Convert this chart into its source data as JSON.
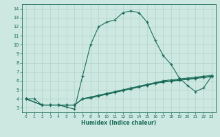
{
  "xlabel": "Humidex (Indice chaleur)",
  "background_color": "#cce8e0",
  "grid_color": "#aaccc4",
  "line_color": "#1a6b5a",
  "xlim": [
    -0.5,
    23.5
  ],
  "ylim": [
    2.5,
    14.5
  ],
  "xticks": [
    0,
    1,
    2,
    3,
    4,
    5,
    6,
    7,
    8,
    9,
    10,
    11,
    12,
    13,
    14,
    15,
    16,
    17,
    18,
    19,
    20,
    21,
    22,
    23
  ],
  "yticks": [
    3,
    4,
    5,
    6,
    7,
    8,
    9,
    10,
    11,
    12,
    13,
    14
  ],
  "line1_x": [
    0,
    1,
    2,
    3,
    4,
    5,
    6,
    7,
    8,
    9,
    10,
    11,
    12,
    13,
    14,
    15,
    16,
    17,
    18,
    19,
    20,
    21,
    22,
    23
  ],
  "line1_y": [
    4.0,
    4.0,
    3.3,
    3.3,
    3.3,
    3.1,
    2.85,
    6.5,
    10.0,
    12.0,
    12.5,
    12.75,
    13.55,
    13.75,
    13.55,
    12.5,
    10.5,
    8.8,
    7.8,
    6.3,
    5.5,
    4.8,
    5.2,
    6.5
  ],
  "line2_x": [
    0,
    2,
    3,
    4,
    5,
    6,
    7,
    8,
    9,
    10,
    11,
    12,
    13,
    14,
    15,
    16,
    17,
    18,
    19,
    20,
    21,
    22,
    23
  ],
  "line2_y": [
    4.0,
    3.3,
    3.3,
    3.3,
    3.3,
    3.3,
    4.0,
    4.2,
    4.4,
    4.6,
    4.8,
    5.0,
    5.2,
    5.4,
    5.6,
    5.8,
    6.0,
    6.1,
    6.2,
    6.3,
    6.4,
    6.5,
    6.6
  ],
  "line3_x": [
    0,
    2,
    3,
    4,
    5,
    6,
    7,
    8,
    9,
    10,
    11,
    12,
    13,
    14,
    15,
    16,
    17,
    18,
    19,
    20,
    21,
    22,
    23
  ],
  "line3_y": [
    4.0,
    3.3,
    3.3,
    3.3,
    3.3,
    3.3,
    4.0,
    4.15,
    4.35,
    4.55,
    4.75,
    4.95,
    5.15,
    5.35,
    5.55,
    5.75,
    5.9,
    6.0,
    6.1,
    6.2,
    6.3,
    6.4,
    6.5
  ],
  "line4_x": [
    0,
    2,
    3,
    4,
    5,
    6,
    7,
    8,
    9,
    10,
    11,
    12,
    13,
    14,
    15,
    16,
    17,
    18,
    19,
    20,
    21,
    22,
    23
  ],
  "line4_y": [
    4.0,
    3.3,
    3.3,
    3.3,
    3.3,
    3.3,
    4.0,
    4.1,
    4.3,
    4.5,
    4.7,
    4.9,
    5.1,
    5.3,
    5.5,
    5.7,
    5.85,
    5.95,
    6.05,
    6.15,
    6.25,
    6.35,
    6.45
  ]
}
